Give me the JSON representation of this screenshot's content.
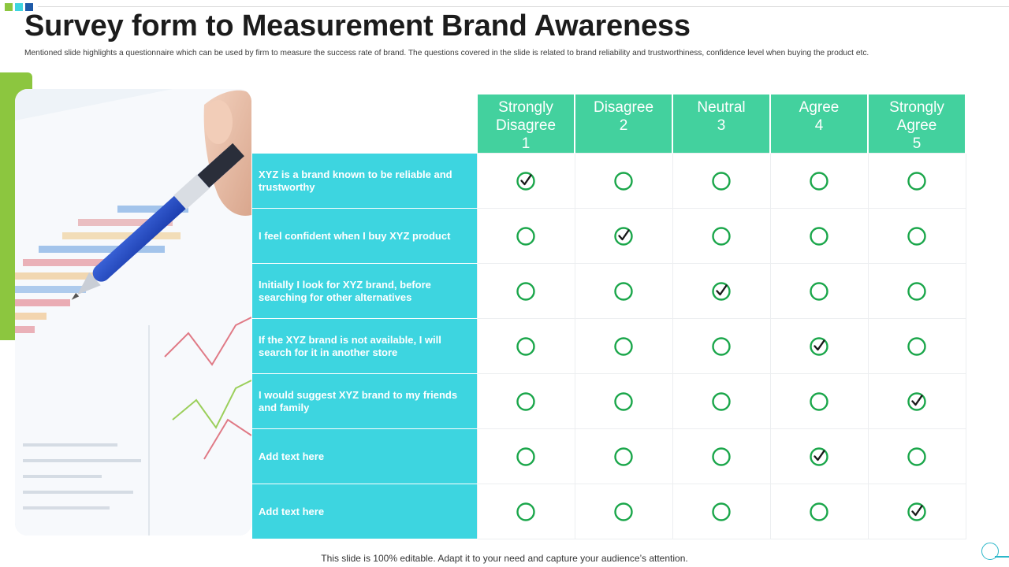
{
  "title": "Survey form to Measurement Brand Awareness",
  "subtitle": "Mentioned slide highlights a questionnaire which can be used by firm to measure the success rate of brand. The questions covered in the slide is related to brand reliability and trustworthiness, confidence level when buying the product etc.",
  "colors": {
    "header": "#43d19e",
    "question": "#3dd5e0",
    "circle": "#1aa64a",
    "accent_bar": "#8cc63f"
  },
  "scale": [
    {
      "label": "Strongly Disagree",
      "value": "1"
    },
    {
      "label": "Disagree",
      "value": "2"
    },
    {
      "label": "Neutral",
      "value": "3"
    },
    {
      "label": "Agree",
      "value": "4"
    },
    {
      "label": "Strongly Agree",
      "value": "5"
    }
  ],
  "questions": [
    {
      "text": "XYZ is a brand known to be reliable and trustworthy",
      "selected": 1
    },
    {
      "text": "I feel confident when I buy XYZ product",
      "selected": 2
    },
    {
      "text": "Initially I look for XYZ brand, before searching for other alternatives",
      "selected": 3
    },
    {
      "text": "If the XYZ brand is not available, I will search for it in another store",
      "selected": 4
    },
    {
      "text": "I would suggest XYZ brand to my friends and family",
      "selected": 5
    },
    {
      "text": "Add text here",
      "selected": 4
    },
    {
      "text": "Add text here",
      "selected": 5
    }
  ],
  "footer": "This slide is 100% editable. Adapt it to your need and capture your audience’s attention."
}
